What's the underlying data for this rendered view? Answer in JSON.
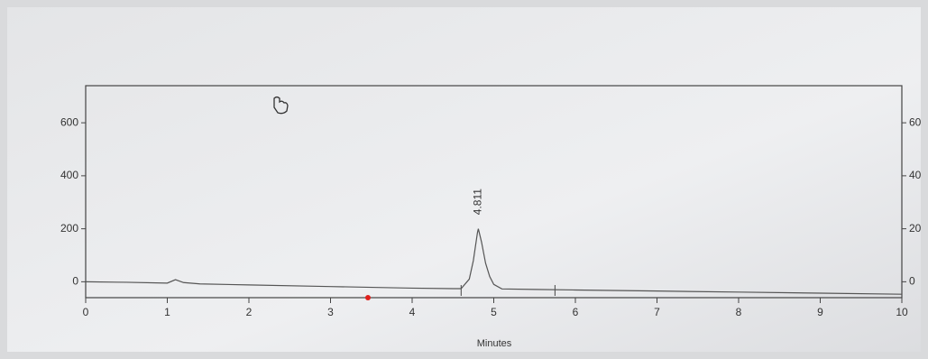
{
  "chart_data": {
    "type": "line",
    "x_label": "Minutes",
    "x": [
      0,
      0.5,
      1.0,
      1.1,
      1.2,
      1.4,
      2,
      3,
      4,
      4.5,
      4.6,
      4.7,
      4.75,
      4.8,
      4.811,
      4.85,
      4.9,
      4.95,
      5.0,
      5.1,
      5.5,
      6,
      7,
      8,
      9,
      10
    ],
    "series": [
      {
        "color": "#555555",
        "values": [
          0,
          -2,
          -5,
          8,
          -3,
          -8,
          -12,
          -18,
          -24,
          -26,
          -26,
          10,
          80,
          185,
          200,
          150,
          70,
          20,
          -10,
          -27,
          -29,
          -31,
          -35,
          -39,
          -43,
          -47
        ]
      }
    ],
    "annotations": [
      {
        "x": 4.811,
        "text": "4.811"
      }
    ],
    "event_marks": [
      4.6,
      5.75
    ],
    "xlim": [
      0,
      10
    ],
    "xticks": [
      0,
      1,
      2,
      3,
      4,
      5,
      6,
      7,
      8,
      9,
      10
    ],
    "ylim": [
      -60,
      740
    ],
    "yticks": [
      0,
      200,
      400,
      600
    ],
    "y2lim": [
      -6,
      74
    ],
    "y2ticks": [
      0,
      20,
      40,
      60
    ]
  }
}
